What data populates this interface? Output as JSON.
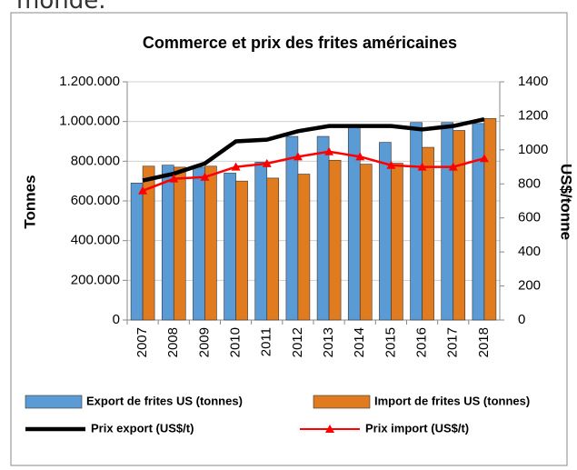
{
  "page_text": "monde.",
  "chart_data": {
    "type": "bar_line",
    "title": "Commerce et prix des frites américaines",
    "ylabel": "Tonnes",
    "y2label": "US$/tonne",
    "categories": [
      "2007",
      "2008",
      "2009",
      "2010",
      "2011",
      "2012",
      "2013",
      "2014",
      "2015",
      "2016",
      "2017",
      "2018"
    ],
    "series": [
      {
        "name": "Export de frites US (tonnes)",
        "kind": "bar",
        "color": "#5b9bd5",
        "values": [
          690000,
          780000,
          770000,
          740000,
          795000,
          925000,
          925000,
          975000,
          895000,
          995000,
          995000,
          990000
        ]
      },
      {
        "name": "Import de frites US (tonnes)",
        "kind": "bar",
        "color": "#e07b20",
        "values": [
          775000,
          770000,
          775000,
          700000,
          715000,
          735000,
          805000,
          785000,
          790000,
          870000,
          955000,
          1015000
        ]
      },
      {
        "name": "Prix export (US$/t)",
        "kind": "line",
        "axis": "y2",
        "color": "#000000",
        "values": [
          820,
          860,
          920,
          1050,
          1060,
          1110,
          1140,
          1140,
          1140,
          1120,
          1140,
          1180
        ]
      },
      {
        "name": "Prix import (US$/t)",
        "kind": "line",
        "axis": "y2",
        "marker": "triangle",
        "color": "#ff0000",
        "values": [
          760,
          830,
          840,
          900,
          920,
          960,
          990,
          960,
          910,
          900,
          900,
          950
        ]
      }
    ],
    "ylim": [
      0,
      1200000
    ],
    "yticks": [
      0,
      {
        "value": 200000,
        "label": "200.000"
      },
      {
        "value": 400000,
        "label": "400.000"
      },
      {
        "value": 600000,
        "label": "600.000"
      },
      {
        "value": 800000,
        "label": "800.000"
      },
      {
        "value": 1000000,
        "label": "1.000.000"
      },
      {
        "value": 1200000,
        "label": "1.200.000"
      }
    ],
    "y2lim": [
      0,
      1400
    ],
    "y2ticks": [
      0,
      200,
      400,
      600,
      800,
      1000,
      1200,
      1400
    ],
    "grid": true
  }
}
